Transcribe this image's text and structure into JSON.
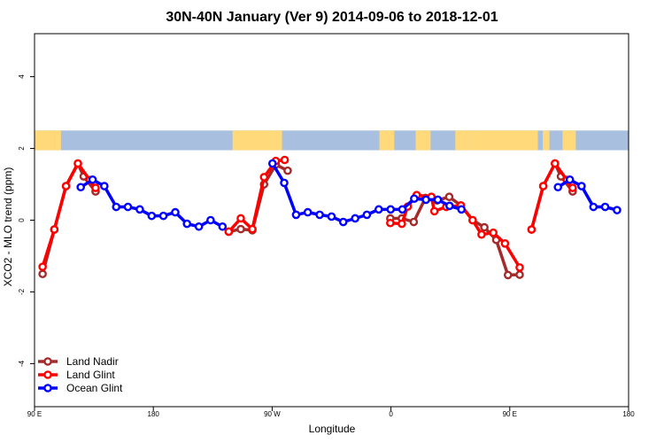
{
  "chart_data": {
    "type": "line",
    "title": "30N-40N January (Ver 9)   2014-09-06 to 2018-12-01",
    "xlabel": "Longitude",
    "ylabel": "XCO2 - MLO trend (ppm)",
    "xlim": [
      90,
      450
    ],
    "ylim": [
      -5.2,
      5.2
    ],
    "x_ticks": [
      {
        "value": 90,
        "label": "90 E"
      },
      {
        "value": 162,
        "label": "180"
      },
      {
        "value": 234,
        "label": "90 W"
      },
      {
        "value": 306,
        "label": "0"
      },
      {
        "value": 378,
        "label": "90 E"
      },
      {
        "value": 450,
        "label": "180"
      }
    ],
    "y_ticks": [
      {
        "value": -4,
        "label": "-4"
      },
      {
        "value": -2,
        "label": "-2"
      },
      {
        "value": 0,
        "label": "0"
      },
      {
        "value": 2,
        "label": "2"
      },
      {
        "value": 4,
        "label": "4"
      }
    ],
    "land_ocean_strip": {
      "y_range": [
        1.95,
        2.5
      ],
      "land_color": "#FFD97A",
      "ocean_color": "#A9BFDF",
      "land_segments": [
        [
          90,
          102
        ],
        [
          102,
          106
        ],
        [
          210,
          240
        ],
        [
          299,
          308
        ],
        [
          321,
          330
        ],
        [
          345,
          355
        ],
        [
          355,
          395
        ],
        [
          398,
          402
        ],
        [
          410,
          418
        ]
      ]
    },
    "legend": {
      "position": "bottom-left"
    },
    "series": [
      {
        "name": "Land Nadir",
        "color": "#A52A2A",
        "segments": [
          [
            [
              94.9,
              -1.5
            ],
            [
              102,
              -0.26
            ],
            [
              109.1,
              0.95
            ],
            [
              116.3,
              1.58
            ],
            [
              119.8,
              1.22
            ],
            [
              127,
              0.8
            ]
          ],
          [
            [
              207.7,
              -0.32
            ],
            [
              215,
              -0.25
            ],
            [
              222,
              -0.28
            ],
            [
              229.1,
              1.0
            ],
            [
              236.2,
              1.55
            ],
            [
              243.4,
              1.38
            ]
          ],
          [
            [
              305.6,
              0.05
            ],
            [
              312.6,
              0.05
            ],
            [
              319.8,
              -0.05
            ],
            [
              326.9,
              0.62
            ],
            [
              334,
              0.55
            ],
            [
              341.3,
              0.65
            ],
            [
              348.4,
              0.41
            ],
            [
              355.5,
              0.0
            ],
            [
              362.6,
              -0.2
            ],
            [
              369.8,
              -0.55
            ],
            [
              376.9,
              -1.53
            ],
            [
              384,
              -1.52
            ]
          ],
          [
            [
              391.2,
              -0.26
            ],
            [
              398.3,
              0.95
            ],
            [
              405.4,
              1.58
            ],
            [
              409,
              1.22
            ],
            [
              416.1,
              0.8
            ]
          ]
        ]
      },
      {
        "name": "Land Glint",
        "color": "#FF0000",
        "segments": [
          [
            [
              94.9,
              -1.3
            ],
            [
              102,
              -0.26
            ],
            [
              109.1,
              0.95
            ],
            [
              116.3,
              1.58
            ],
            [
              123.4,
              1.12
            ],
            [
              127,
              0.9
            ]
          ],
          [
            [
              207.7,
              -0.32
            ],
            [
              215,
              0.05
            ],
            [
              222,
              -0.25
            ],
            [
              229.1,
              1.2
            ],
            [
              236.2,
              1.65
            ],
            [
              241.6,
              1.68
            ]
          ],
          [
            [
              305.6,
              -0.08
            ],
            [
              312.6,
              -0.1
            ],
            [
              316.2,
              0.38
            ],
            [
              321.6,
              0.7
            ],
            [
              330.5,
              0.65
            ],
            [
              332.3,
              0.25
            ],
            [
              339.5,
              0.37
            ],
            [
              348.4,
              0.41
            ],
            [
              355.5,
              0.0
            ],
            [
              360.9,
              -0.4
            ],
            [
              368,
              -0.35
            ],
            [
              375.1,
              -0.65
            ],
            [
              384,
              -1.32
            ]
          ],
          [
            [
              391.2,
              -0.26
            ],
            [
              398.3,
              0.95
            ],
            [
              405.4,
              1.58
            ],
            [
              412.6,
              1.12
            ],
            [
              416.1,
              0.9
            ]
          ]
        ]
      },
      {
        "name": "Ocean Glint",
        "color": "#0000FF",
        "segments": [
          [
            [
              118,
              0.92
            ],
            [
              125.2,
              1.13
            ],
            [
              132.3,
              0.95
            ],
            [
              139.5,
              0.37
            ],
            [
              146.6,
              0.37
            ],
            [
              153.8,
              0.3
            ],
            [
              161,
              0.12
            ],
            [
              168.1,
              0.12
            ],
            [
              175.3,
              0.22
            ],
            [
              182.4,
              -0.1
            ],
            [
              189.6,
              -0.18
            ],
            [
              196.7,
              0.0
            ],
            [
              203.9,
              -0.18
            ]
          ],
          [
            [
              234.2,
              1.58
            ],
            [
              241.3,
              1.04
            ],
            [
              248.5,
              0.15
            ],
            [
              255.6,
              0.22
            ],
            [
              262.8,
              0.15
            ],
            [
              270,
              0.1
            ],
            [
              277.1,
              -0.05
            ],
            [
              284.3,
              0.05
            ],
            [
              291.4,
              0.15
            ],
            [
              298.6,
              0.3
            ],
            [
              305.8,
              0.3
            ],
            [
              312.9,
              0.3
            ],
            [
              320.1,
              0.6
            ],
            [
              327.2,
              0.57
            ],
            [
              334.4,
              0.57
            ],
            [
              341.5,
              0.4
            ],
            [
              348.7,
              0.3
            ]
          ],
          [
            [
              407.2,
              0.92
            ],
            [
              414.4,
              1.13
            ],
            [
              421.5,
              0.95
            ],
            [
              428.7,
              0.37
            ],
            [
              435.8,
              0.37
            ],
            [
              443,
              0.28
            ]
          ]
        ]
      }
    ]
  }
}
